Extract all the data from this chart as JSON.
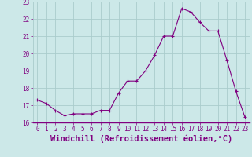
{
  "x": [
    0,
    1,
    2,
    3,
    4,
    5,
    6,
    7,
    8,
    9,
    10,
    11,
    12,
    13,
    14,
    15,
    16,
    17,
    18,
    19,
    20,
    21,
    22,
    23
  ],
  "y": [
    17.3,
    17.1,
    16.7,
    16.4,
    16.5,
    16.5,
    16.5,
    16.7,
    16.7,
    17.7,
    18.4,
    18.4,
    19.0,
    19.9,
    21.0,
    21.0,
    22.6,
    22.4,
    21.8,
    21.3,
    21.3,
    19.6,
    17.8,
    16.3
  ],
  "line_color": "#800080",
  "marker": "+",
  "marker_size": 3,
  "marker_lw": 0.8,
  "bg_color": "#cce8e8",
  "grid_color": "#aacccc",
  "xlabel": "Windchill (Refroidissement éolien,°C)",
  "ylim": [
    16,
    23
  ],
  "xlim": [
    -0.5,
    23.5
  ],
  "yticks": [
    16,
    17,
    18,
    19,
    20,
    21,
    22,
    23
  ],
  "xticks": [
    0,
    1,
    2,
    3,
    4,
    5,
    6,
    7,
    8,
    9,
    10,
    11,
    12,
    13,
    14,
    15,
    16,
    17,
    18,
    19,
    20,
    21,
    22,
    23
  ],
  "tick_color": "#800080",
  "label_color": "#800080",
  "tick_fontsize": 5.5,
  "xlabel_fontsize": 7.5,
  "linewidth": 0.8
}
